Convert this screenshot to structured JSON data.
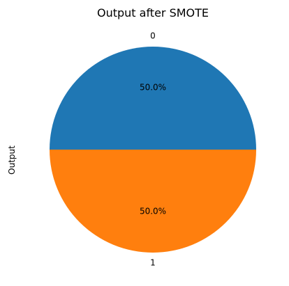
{
  "chart_data": {
    "type": "pie",
    "title": "Output after SMOTE",
    "ylabel": "Output",
    "categories": [
      "0",
      "1"
    ],
    "values": [
      50.0,
      50.0
    ],
    "percent_labels": [
      "50.0%",
      "50.0%"
    ],
    "colors": [
      "#1f77b4",
      "#ff7f0e"
    ]
  }
}
